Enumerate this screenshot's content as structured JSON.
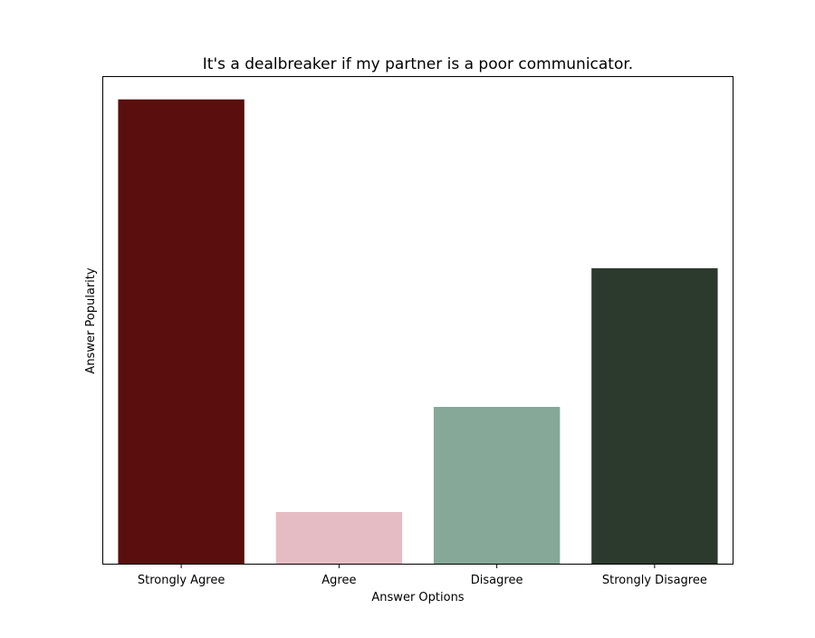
{
  "chart_data": {
    "type": "bar",
    "title": "It's a dealbreaker if my partner is a poor communicator.",
    "xlabel": "Answer Options",
    "ylabel": "Answer Popularity",
    "categories": [
      "Strongly Agree",
      "Agree",
      "Disagree",
      "Strongly Disagree"
    ],
    "values": [
      100,
      11.3,
      33.9,
      63.7
    ],
    "colors": [
      "#5a0e0e",
      "#e6bcc4",
      "#85a899",
      "#2c3a2e"
    ],
    "ylim": [
      0,
      105
    ],
    "y_ticks_shown": false,
    "grid": false,
    "legend": "none"
  }
}
